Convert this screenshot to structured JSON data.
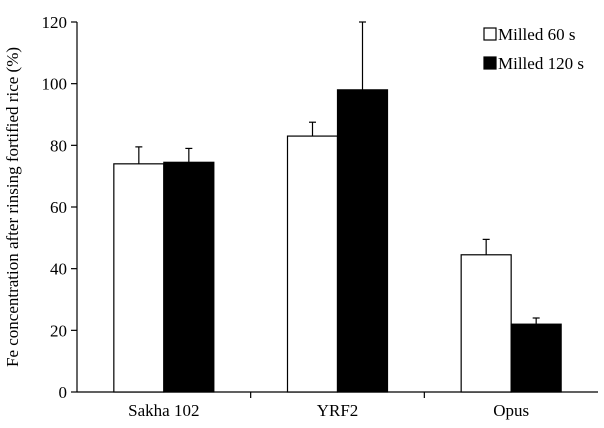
{
  "chart_data": {
    "type": "bar",
    "title": "",
    "ylabel": "Fe concentration after rinsing fortified rice (%)",
    "xlabel": "",
    "ylim": [
      0,
      120
    ],
    "yticks": [
      0,
      20,
      40,
      60,
      80,
      100,
      120
    ],
    "categories": [
      "Sakha 102",
      "YRF2",
      "Opus"
    ],
    "series": [
      {
        "name": "Milled 60 s",
        "fill": "#ffffff",
        "stroke": "#000000",
        "values": [
          74,
          83,
          44.5
        ],
        "errors": [
          5.5,
          4.5,
          5
        ]
      },
      {
        "name": "Milled 120 s",
        "fill": "#000000",
        "stroke": "#000000",
        "values": [
          74.5,
          98,
          22
        ],
        "errors": [
          4.5,
          22,
          2
        ]
      }
    ],
    "legend_position": "top-right",
    "grid": false
  }
}
